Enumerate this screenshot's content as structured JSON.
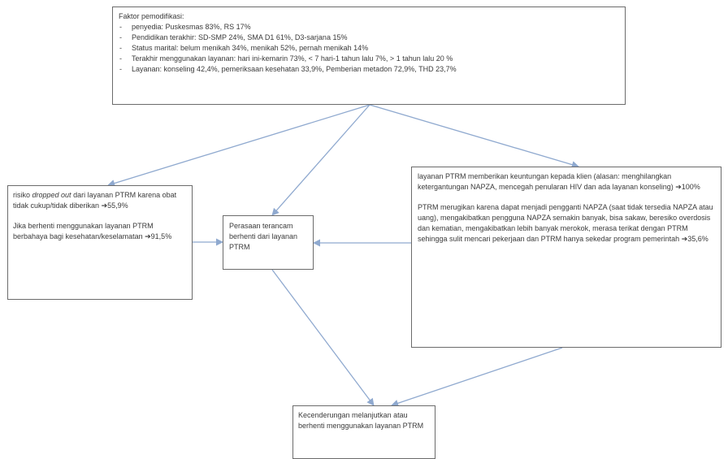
{
  "factors": {
    "title": "Faktor pemodifikasi:",
    "items": [
      "penyedia: Puskesmas 83%, RS 17%",
      "Pendidikan terakhir: SD-SMP 24%, SMA D1 61%, D3-sarjana 15%",
      "Status marital: belum menikah 34%, menikah 52%, pernah menikah 14%",
      "Terakhir menggunakan layanan: hari ini-kemarin 73%, < 7 hari-1 tahun lalu 7%, > 1 tahun lalu 20 %",
      "Layanan: konseling 42,4%, pemeriksaan kesehatan 33,9%, Pemberian metadon 72,9%, THD 23,7%"
    ]
  },
  "dropout": {
    "p1_prefix": "risiko ",
    "p1_italic": "dropped out",
    "p1_suffix": " dari layanan PTRM karena obat tidak cukup/tidak diberikan ",
    "p1_arrow": "➔",
    "p1_value": "55,9%",
    "p2_text": "Jika berhenti menggunakan layanan PTRM berbahaya bagi kesehatan/keselamatan ",
    "p2_arrow": "➔",
    "p2_value": "91,5%"
  },
  "threat": {
    "text": "Perasaan terancam berhenti dari layanan PTRM"
  },
  "ptrm": {
    "p1_text": "layanan PTRM  memberikan keuntungan kepada klien (alasan: menghilangkan ketergantungan NAPZA, mencegah penularan HIV dan ada layanan konseling) ",
    "p1_arrow": "➔",
    "p1_value": "100%",
    "p2_text": "PTRM merugikan karena  dapat menjadi pengganti NAPZA (saat tidak tersedia NAPZA atau uang), mengakibatkan pengguna NAPZA semakin banyak, bisa sakaw, beresiko overdosis dan kematian,  mengakibatkan lebih banyak merokok,  merasa terikat dengan PTRM sehingga sulit mencari pekerjaan  dan PTRM hanya sekedar program pemerintah ",
    "p2_arrow": "➔",
    "p2_value": "35,6%"
  },
  "tendency": {
    "text": "Kecenderungan melanjutkan atau berhenti menggunakan layanan PTRM"
  },
  "colors": {
    "arrow": "#8fa9cf",
    "border": "#6b6b6b",
    "text": "#3a3a3a"
  }
}
